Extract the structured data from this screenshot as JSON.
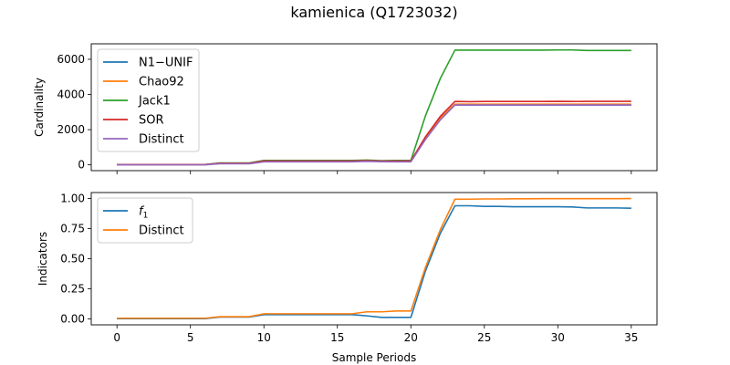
{
  "figure": {
    "title": "kamienica (Q1723032)"
  },
  "chart_data": [
    {
      "type": "line",
      "title": "",
      "xlabel": "",
      "ylabel": "Cardinality",
      "xlim": [
        -1.75,
        36.75
      ],
      "ylim": [
        -330,
        6880
      ],
      "xticks": [
        0,
        5,
        10,
        15,
        20,
        25,
        30,
        35
      ],
      "xtick_labels_shown": false,
      "yticks": [
        0,
        2000,
        4000,
        6000
      ],
      "ytick_labels": [
        "0",
        "2000",
        "4000",
        "6000"
      ],
      "grid": false,
      "legend": "top-left",
      "x": [
        0,
        1,
        2,
        3,
        4,
        5,
        6,
        7,
        8,
        9,
        10,
        11,
        12,
        13,
        14,
        15,
        16,
        17,
        18,
        19,
        20,
        21,
        22,
        23,
        24,
        25,
        26,
        27,
        28,
        29,
        30,
        31,
        32,
        33,
        34,
        35
      ],
      "series": [
        {
          "name": "N1−UNIF",
          "color": "#1f77b4",
          "values": [
            10,
            10,
            10,
            10,
            10,
            10,
            10,
            80,
            80,
            80,
            200,
            200,
            200,
            200,
            200,
            200,
            200,
            220,
            200,
            200,
            200,
            1500,
            2600,
            3400,
            3400,
            3400,
            3400,
            3400,
            3400,
            3400,
            3400,
            3400,
            3400,
            3400,
            3400,
            3400
          ]
        },
        {
          "name": "Chao92",
          "color": "#ff7f0e",
          "values": [
            10,
            10,
            10,
            10,
            10,
            10,
            10,
            80,
            80,
            80,
            200,
            200,
            200,
            200,
            200,
            200,
            200,
            220,
            200,
            200,
            200,
            1550,
            2650,
            3450,
            3450,
            3450,
            3450,
            3450,
            3450,
            3450,
            3450,
            3450,
            3450,
            3450,
            3450,
            3450
          ]
        },
        {
          "name": "Jack1",
          "color": "#2ca02c",
          "values": [
            20,
            20,
            20,
            20,
            20,
            20,
            20,
            110,
            110,
            110,
            250,
            250,
            250,
            250,
            250,
            250,
            250,
            270,
            240,
            250,
            250,
            2800,
            4900,
            6520,
            6520,
            6520,
            6520,
            6520,
            6520,
            6520,
            6530,
            6530,
            6500,
            6500,
            6500,
            6500
          ]
        },
        {
          "name": "SOR",
          "color": "#d62728",
          "values": [
            15,
            15,
            15,
            15,
            15,
            15,
            15,
            90,
            90,
            90,
            220,
            220,
            220,
            220,
            220,
            220,
            220,
            240,
            210,
            220,
            220,
            1600,
            2750,
            3600,
            3590,
            3600,
            3600,
            3600,
            3600,
            3600,
            3610,
            3600,
            3610,
            3610,
            3610,
            3610
          ]
        },
        {
          "name": "Distinct",
          "color": "#9467bd",
          "values": [
            5,
            5,
            5,
            5,
            5,
            5,
            5,
            60,
            60,
            60,
            170,
            170,
            170,
            170,
            170,
            170,
            170,
            200,
            180,
            170,
            170,
            1450,
            2550,
            3400,
            3400,
            3400,
            3400,
            3400,
            3400,
            3400,
            3400,
            3400,
            3400,
            3400,
            3400,
            3400
          ]
        }
      ]
    },
    {
      "type": "line",
      "title": "",
      "xlabel": "Sample Periods",
      "ylabel": "Indicators",
      "xlim": [
        -1.75,
        36.75
      ],
      "ylim": [
        -0.05,
        1.05
      ],
      "xticks": [
        0,
        5,
        10,
        15,
        20,
        25,
        30,
        35
      ],
      "xtick_labels": [
        "0",
        "5",
        "10",
        "15",
        "20",
        "25",
        "30",
        "35"
      ],
      "yticks": [
        0.0,
        0.25,
        0.5,
        0.75,
        1.0
      ],
      "ytick_labels": [
        "0.00",
        "0.25",
        "0.50",
        "0.75",
        "1.00"
      ],
      "grid": false,
      "legend": "top-left",
      "x": [
        0,
        1,
        2,
        3,
        4,
        5,
        6,
        7,
        8,
        9,
        10,
        11,
        12,
        13,
        14,
        15,
        16,
        17,
        18,
        19,
        20,
        21,
        22,
        23,
        24,
        25,
        26,
        27,
        28,
        29,
        30,
        31,
        32,
        33,
        34,
        35
      ],
      "series": [
        {
          "name": "f1",
          "legend_base": "f",
          "legend_sub": "1",
          "color": "#1f77b4",
          "values": [
            0.002,
            0.002,
            0.002,
            0.002,
            0.002,
            0.002,
            0.002,
            0.015,
            0.015,
            0.015,
            0.035,
            0.035,
            0.035,
            0.035,
            0.035,
            0.035,
            0.035,
            0.025,
            0.012,
            0.012,
            0.012,
            0.4,
            0.71,
            0.94,
            0.94,
            0.935,
            0.935,
            0.932,
            0.932,
            0.932,
            0.932,
            0.93,
            0.922,
            0.922,
            0.922,
            0.92
          ]
        },
        {
          "name": "Distinct",
          "color": "#ff7f0e",
          "values": [
            0.005,
            0.005,
            0.005,
            0.005,
            0.005,
            0.005,
            0.005,
            0.018,
            0.018,
            0.018,
            0.042,
            0.042,
            0.042,
            0.042,
            0.042,
            0.042,
            0.042,
            0.058,
            0.058,
            0.065,
            0.065,
            0.43,
            0.74,
            0.995,
            0.995,
            0.997,
            0.997,
            0.998,
            0.998,
            0.999,
            0.999,
            0.999,
            0.999,
            0.999,
            0.999,
            1.0
          ]
        }
      ]
    }
  ]
}
